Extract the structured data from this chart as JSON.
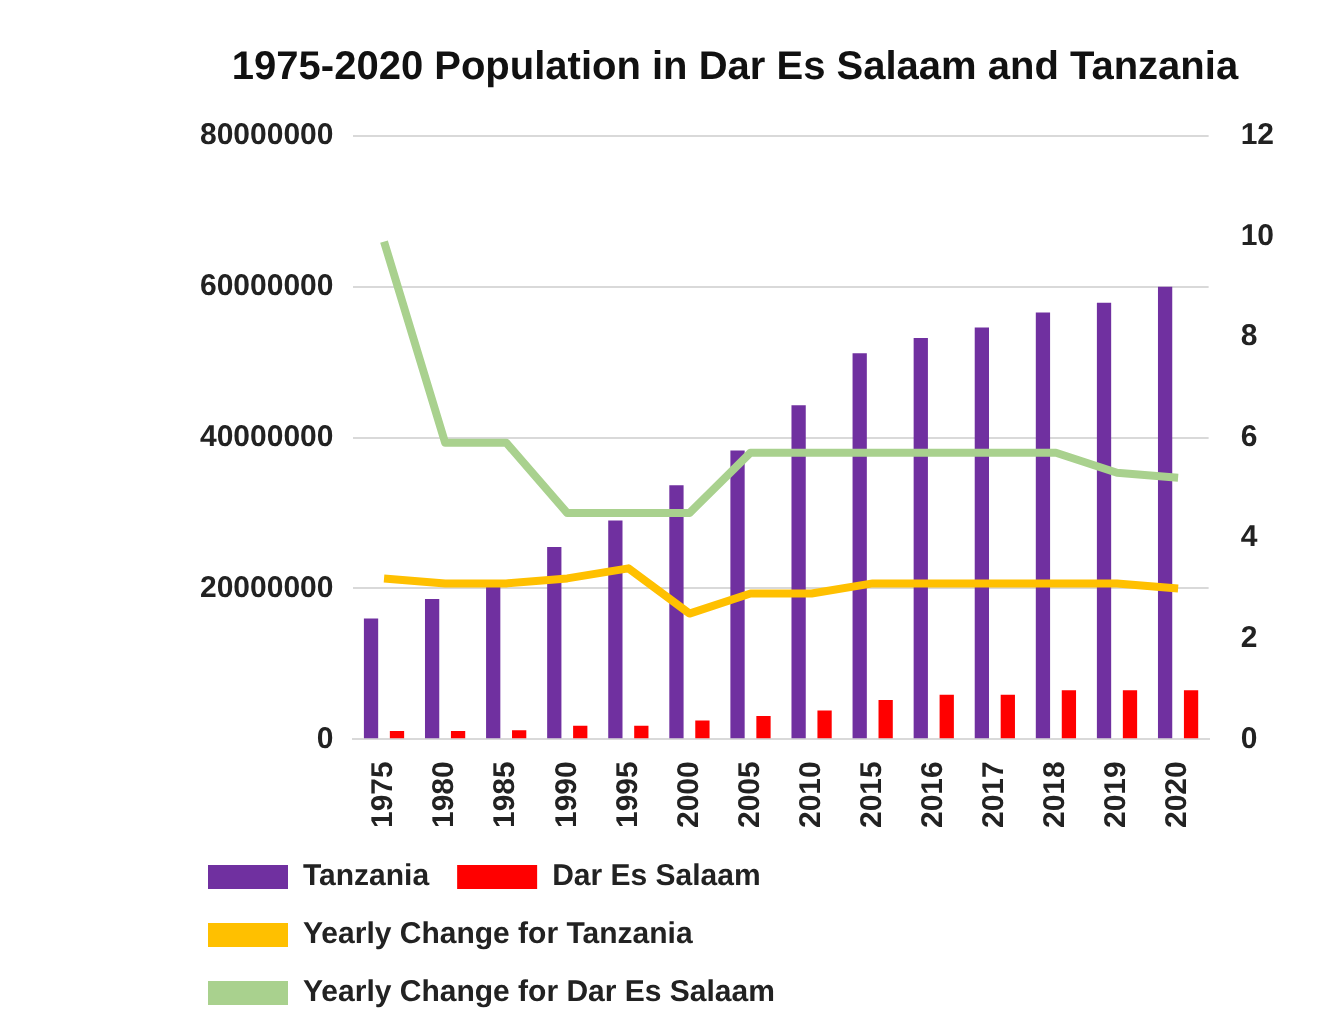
{
  "chart_data": {
    "type": "bar",
    "title": "1975-2020 Population in Dar Es Salaam and Tanzania",
    "categories": [
      "1975",
      "1980",
      "1985",
      "1990",
      "1995",
      "2000",
      "2005",
      "2010",
      "2015",
      "2016",
      "2017",
      "2018",
      "2019",
      "2020"
    ],
    "series": [
      {
        "name": "Tanzania",
        "color": "#7030a0",
        "values": [
          16000000,
          18600000,
          20300000,
          25500000,
          29000000,
          33700000,
          38300000,
          44300000,
          51200000,
          53200000,
          54600000,
          56600000,
          57900000,
          60000000
        ]
      },
      {
        "name": "Dar Es Salaam",
        "color": "#ff0000",
        "values": [
          1100000,
          1100000,
          1200000,
          1800000,
          1800000,
          2500000,
          3100000,
          3800000,
          5200000,
          5900000,
          5900000,
          6500000,
          6500000,
          6500000
        ]
      },
      {
        "name": "Yearly Change for Tanzania",
        "type": "line",
        "axis": "y2",
        "color": "#ffc000",
        "values": [
          3.2,
          3.1,
          3.1,
          3.2,
          3.4,
          2.5,
          2.9,
          2.9,
          3.1,
          3.1,
          3.1,
          3.1,
          3.1,
          3.0
        ]
      },
      {
        "name": "Yearly Change for Dar Es Salaam",
        "type": "line",
        "axis": "y2",
        "color": "#a9d18e",
        "values": [
          9.9,
          5.9,
          5.9,
          4.5,
          4.5,
          4.5,
          5.7,
          5.7,
          5.7,
          5.7,
          5.7,
          5.7,
          5.3,
          5.2
        ]
      }
    ],
    "ylim": [
      0,
      80000000
    ],
    "yticks": [
      0,
      20000000,
      40000000,
      60000000,
      80000000
    ],
    "y2lim": [
      0,
      12
    ],
    "y2ticks": [
      0,
      2,
      4,
      6,
      8,
      10,
      12
    ],
    "grid": "y",
    "legend": "bottom",
    "marker": "none"
  }
}
